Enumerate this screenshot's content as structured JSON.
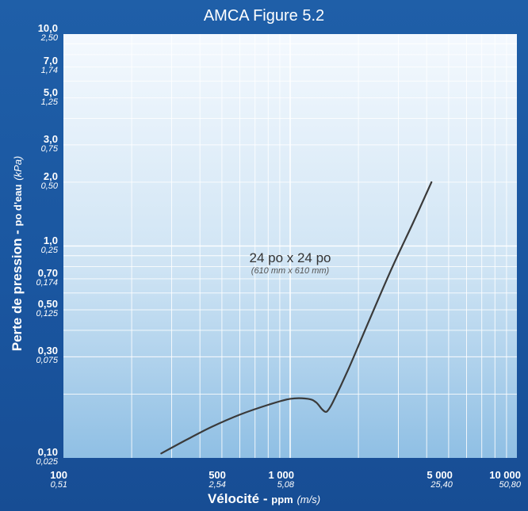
{
  "chart_data": {
    "type": "line",
    "title": "AMCA Figure 5.2",
    "xlabel": {
      "main": "Vélocité",
      "sub": "ppm",
      "unit": "(m/s)"
    },
    "ylabel": {
      "main": "Perte de pression",
      "sub": "po d'eau",
      "unit": "(kPa)"
    },
    "x_scale": "log",
    "y_scale": "log",
    "xlim": [
      100,
      10000
    ],
    "ylim": [
      0.1,
      10
    ],
    "grid": true,
    "x_ticks": [
      {
        "value": 100,
        "label": "100",
        "sublabel": "0,51"
      },
      {
        "value": 500,
        "label": "500",
        "sublabel": "2,54"
      },
      {
        "value": 1000,
        "label": "1 000",
        "sublabel": "5,08"
      },
      {
        "value": 5000,
        "label": "5 000",
        "sublabel": "25,40"
      },
      {
        "value": 10000,
        "label": "10 000",
        "sublabel": "50,80"
      }
    ],
    "y_ticks": [
      {
        "value": 10,
        "label": "10,0",
        "sublabel": "2,50"
      },
      {
        "value": 7,
        "label": "7,0",
        "sublabel": "1,74"
      },
      {
        "value": 5,
        "label": "5,0",
        "sublabel": "1,25"
      },
      {
        "value": 3,
        "label": "3,0",
        "sublabel": "0,75"
      },
      {
        "value": 2,
        "label": "2,0",
        "sublabel": "0,50"
      },
      {
        "value": 1,
        "label": "1,0",
        "sublabel": "0,25"
      },
      {
        "value": 0.7,
        "label": "0,70",
        "sublabel": "0,174"
      },
      {
        "value": 0.5,
        "label": "0,50",
        "sublabel": "0,125"
      },
      {
        "value": 0.3,
        "label": "0,30",
        "sublabel": "0,075"
      },
      {
        "value": 0.1,
        "label": "0,10",
        "sublabel": "0,025"
      }
    ],
    "series": [
      {
        "x": [
          270,
          350,
          450,
          600,
          800,
          1000,
          1200,
          1300,
          1380,
          1430,
          1470,
          1550,
          1800,
          2200,
          2800,
          3500,
          4200
        ],
        "y": [
          0.105,
          0.122,
          0.14,
          0.16,
          0.178,
          0.19,
          0.19,
          0.183,
          0.17,
          0.165,
          0.168,
          0.185,
          0.26,
          0.43,
          0.78,
          1.3,
          2.0
        ],
        "color": "#3a3a3a"
      }
    ],
    "annotations": [
      {
        "text": "24 po x 24 po",
        "subtext": "(610 mm x 610 mm)"
      }
    ]
  }
}
